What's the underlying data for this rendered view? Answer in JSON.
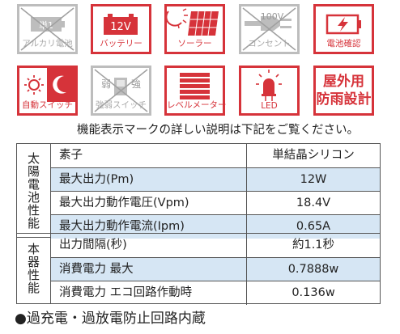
{
  "icons": [
    {
      "id": "alkaline",
      "label": "アルカリ電池",
      "badge": "単1",
      "active": false
    },
    {
      "id": "battery",
      "label": "バッテリー",
      "badge": "12V",
      "active": true
    },
    {
      "id": "solar",
      "label": "ソーラー",
      "active": true
    },
    {
      "id": "outlet",
      "label": "コンセント",
      "badge": "100V",
      "active": false
    },
    {
      "id": "battery-check",
      "label": "電池確認",
      "active": true
    },
    {
      "id": "auto-switch",
      "label": "自動スイッチ",
      "active": true
    },
    {
      "id": "dim-switch",
      "label": "強弱スイッチ",
      "weak": "弱",
      "strong": "強",
      "active": false
    },
    {
      "id": "level-meter",
      "label": "レベルメーター",
      "active": true
    },
    {
      "id": "led",
      "label": "LED",
      "active": true
    },
    {
      "id": "outdoor",
      "label_line1": "屋外用",
      "label_line2": "防雨設計",
      "active": true
    }
  ],
  "note": "機能表示マークの詳しい説明は下記をご覧ください。",
  "solar_table": {
    "side_label": "太陽電池性能",
    "rows": [
      {
        "key": "素子",
        "value": "単結晶シリコン"
      },
      {
        "key": "最大出力(Pm)",
        "value": "12W"
      },
      {
        "key": "最大出力動作電圧(Vpm)",
        "value": "18.4V"
      },
      {
        "key": "最大出力動作電流(Ipm)",
        "value": "0.65A"
      }
    ]
  },
  "device_table": {
    "side_label": "本器性能",
    "rows": [
      {
        "key": "出力間隔(秒)",
        "value": "約1.1秒"
      },
      {
        "key": "消費電力 最大",
        "value": "0.7888w"
      },
      {
        "key": "消費電力 エコ回路作動時",
        "value": "0.136w"
      }
    ]
  },
  "footer": "●過充電・過放電防止回路内蔵",
  "colors": {
    "accent": "#d6333a",
    "inactive": "#bdbdbd",
    "row_highlight": "#d6e6f4"
  }
}
